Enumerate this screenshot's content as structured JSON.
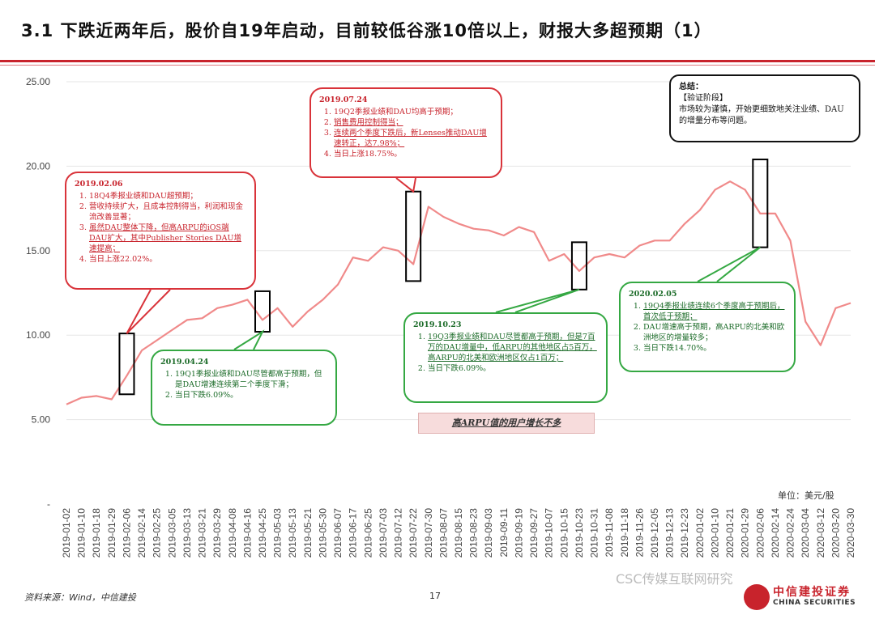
{
  "title": "3.1 下跌近两年后，股价自19年启动，目前较低谷涨10倍以上，财报大多超预期（1）",
  "colors": {
    "accent": "#c8232c",
    "line": "#f08a8a",
    "positive": "#35a843",
    "negative": "#d9333a"
  },
  "chart_data": {
    "type": "line",
    "ylim": [
      0,
      25
    ],
    "yticks": [
      "-",
      "5.00",
      "10.00",
      "15.00",
      "20.00",
      "25.00"
    ],
    "ytick_values": [
      0,
      5,
      10,
      15,
      20,
      25
    ],
    "grid": true,
    "x": [
      "2019-01-02",
      "2019-01-10",
      "2019-01-18",
      "2019-01-29",
      "2019-02-06",
      "2019-02-14",
      "2019-02-25",
      "2019-03-05",
      "2019-03-13",
      "2019-03-21",
      "2019-03-29",
      "2019-04-08",
      "2019-04-16",
      "2019-04-25",
      "2019-05-03",
      "2019-05-13",
      "2019-05-21",
      "2019-05-30",
      "2019-06-07",
      "2019-06-17",
      "2019-06-25",
      "2019-07-03",
      "2019-07-12",
      "2019-07-22",
      "2019-07-30",
      "2019-08-07",
      "2019-08-15",
      "2019-08-23",
      "2019-09-03",
      "2019-09-11",
      "2019-09-19",
      "2019-09-27",
      "2019-10-07",
      "2019-10-15",
      "2019-10-23",
      "2019-10-31",
      "2019-11-08",
      "2019-11-18",
      "2019-11-26",
      "2019-12-05",
      "2019-12-13",
      "2019-12-23",
      "2020-01-02",
      "2020-01-10",
      "2020-01-21",
      "2020-01-29",
      "2020-02-06",
      "2020-02-14",
      "2020-02-24",
      "2020-03-04",
      "2020-03-12",
      "2020-03-20",
      "2020-03-30"
    ],
    "values": [
      5.9,
      6.3,
      6.4,
      6.2,
      7.6,
      9.1,
      9.7,
      10.3,
      10.9,
      11.0,
      11.6,
      11.8,
      12.1,
      10.9,
      11.6,
      10.5,
      11.4,
      12.1,
      13.0,
      14.6,
      14.4,
      15.2,
      15.0,
      14.2,
      17.6,
      17.0,
      16.6,
      16.3,
      16.2,
      15.9,
      16.4,
      16.1,
      14.4,
      14.8,
      13.8,
      14.6,
      14.8,
      14.6,
      15.3,
      15.6,
      15.6,
      16.6,
      17.4,
      18.6,
      19.1,
      18.6,
      17.2,
      17.2,
      15.6,
      10.8,
      9.4,
      11.6,
      11.9
    ],
    "markers": [
      {
        "date": "2019-02-06",
        "label": "2019.02.06"
      },
      {
        "date": "2019-04-24",
        "label": "2019.04.24"
      },
      {
        "date": "2019-07-24",
        "label": "2019.07.24"
      },
      {
        "date": "2019-10-23",
        "label": "2019.10.23"
      },
      {
        "date": "2020-02-05",
        "label": "2020.02.05"
      }
    ]
  },
  "callouts": [
    {
      "date": "2019.02.06",
      "items": [
        "18Q4季报业绩和DAU超预期；",
        "营收持续扩大，且成本控制得当，利润和现金流改善显著；",
        "虽然DAU整体下降，但高ARPU的iOS端DAU扩大，其中Publisher Stories DAU增速提高；",
        "当日上涨22.02%。"
      ]
    },
    {
      "date": "2019.04.24",
      "items": [
        "19Q1季报业绩和DAU尽管都高于预期，但是DAU增速连续第二个季度下滑；",
        "当日下跌6.09%。"
      ]
    },
    {
      "date": "2019.07.24",
      "items": [
        "19Q2季报业绩和DAU均高于预期；",
        "销售费用控制得当；",
        "连续两个季度下跌后，新Lenses推动DAU增速转正，达7.98%；",
        "当日上涨18.75%。"
      ]
    },
    {
      "date": "2019.10.23",
      "items": [
        "19Q3季报业绩和DAU尽管都高于预期，但是7百万的DAU增量中，低ARPU的其他地区占5百万，高ARPU的北美和欧洲地区仅占1百万；",
        "当日下跌6.09%。"
      ]
    },
    {
      "date": "2020.02.05",
      "items": [
        "19Q4季报业绩连续6个季度高于预期后，首次低于预期；",
        "DAU增速高于预期，高ARPU的北美和欧洲地区的增量较多；",
        "当日下跌14.70%。"
      ]
    }
  ],
  "summary": {
    "head": "总结：",
    "stage": "【验证阶段】",
    "text": "市场较为谨慎，开始更细致地关注业绩、DAU的增量分布等问题。"
  },
  "note_box": "高ARPU值的用户增长不多",
  "unit": "单位：美元/股",
  "source": "资料来源：Wind，中信建投",
  "page_number": "17",
  "watermark": "CSC传媒互联网研究",
  "logo": {
    "cn": "中信建投证券",
    "en": "CHINA SECURITIES"
  }
}
